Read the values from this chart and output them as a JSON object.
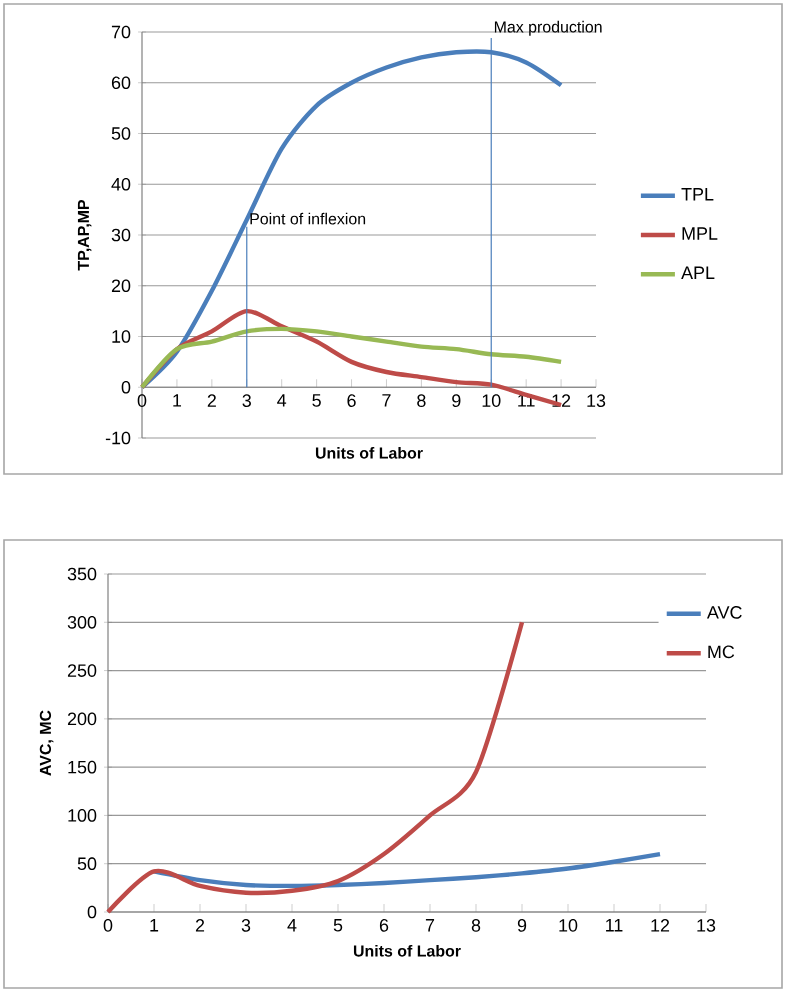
{
  "chart_data": [
    {
      "type": "line",
      "xlabel": "Units of Labor",
      "ylabel": "TP,AP,MP",
      "xlim": [
        0,
        13
      ],
      "ylim": [
        -10,
        70
      ],
      "xticks": [
        0,
        1,
        2,
        3,
        4,
        5,
        6,
        7,
        8,
        9,
        10,
        11,
        12,
        13
      ],
      "yticks": [
        -10,
        0,
        10,
        20,
        30,
        40,
        50,
        60,
        70
      ],
      "grid": "y",
      "legend": "right",
      "marker": "none",
      "x": [
        0,
        1,
        2,
        3,
        4,
        5,
        6,
        7,
        8,
        9,
        10,
        11,
        12
      ],
      "series": [
        {
          "name": "TPL",
          "color": "#4a7ebb",
          "values": [
            0,
            7,
            19,
            33,
            47,
            55.5,
            60,
            63,
            65,
            66,
            66,
            64,
            59.5
          ]
        },
        {
          "name": "MPL",
          "color": "#be4b48",
          "values": [
            0,
            7.5,
            11,
            15,
            12,
            9,
            5,
            3,
            2,
            1,
            0.5,
            -1.5,
            -3.5
          ]
        },
        {
          "name": "APL",
          "color": "#98b954",
          "values": [
            0,
            7.5,
            9,
            11,
            11.5,
            11,
            10,
            9,
            8,
            7.5,
            6.5,
            6,
            5
          ]
        }
      ],
      "ref_lines": [
        {
          "axis": "x",
          "value": 3,
          "label": "Point of inflexion",
          "color": "#4a7ebb"
        },
        {
          "axis": "x",
          "value": 10,
          "label": "Max production",
          "color": "#4a7ebb"
        }
      ]
    },
    {
      "type": "line",
      "xlabel": "Units of Labor",
      "ylabel": "AVC, MC",
      "xlim": [
        0,
        13
      ],
      "ylim": [
        0,
        350
      ],
      "xticks": [
        0,
        1,
        2,
        3,
        4,
        5,
        6,
        7,
        8,
        9,
        10,
        11,
        12,
        13
      ],
      "yticks": [
        0,
        50,
        100,
        150,
        200,
        250,
        300,
        350
      ],
      "grid": "y",
      "legend": "top right",
      "marker": "none",
      "series": [
        {
          "name": "AVC",
          "color": "#4a7ebb",
          "x": [
            1,
            2,
            3,
            4,
            5,
            6,
            7,
            8,
            9,
            10,
            11,
            12
          ],
          "values": [
            42,
            33,
            28,
            27,
            28,
            30,
            33,
            36,
            40,
            45,
            52,
            60
          ]
        },
        {
          "name": "MC",
          "color": "#be4b48",
          "x": [
            0,
            1,
            2,
            3,
            4,
            5,
            6,
            7,
            8,
            9
          ],
          "values": [
            0,
            42,
            27,
            20,
            22,
            32,
            60,
            100,
            145,
            300
          ]
        }
      ]
    }
  ]
}
